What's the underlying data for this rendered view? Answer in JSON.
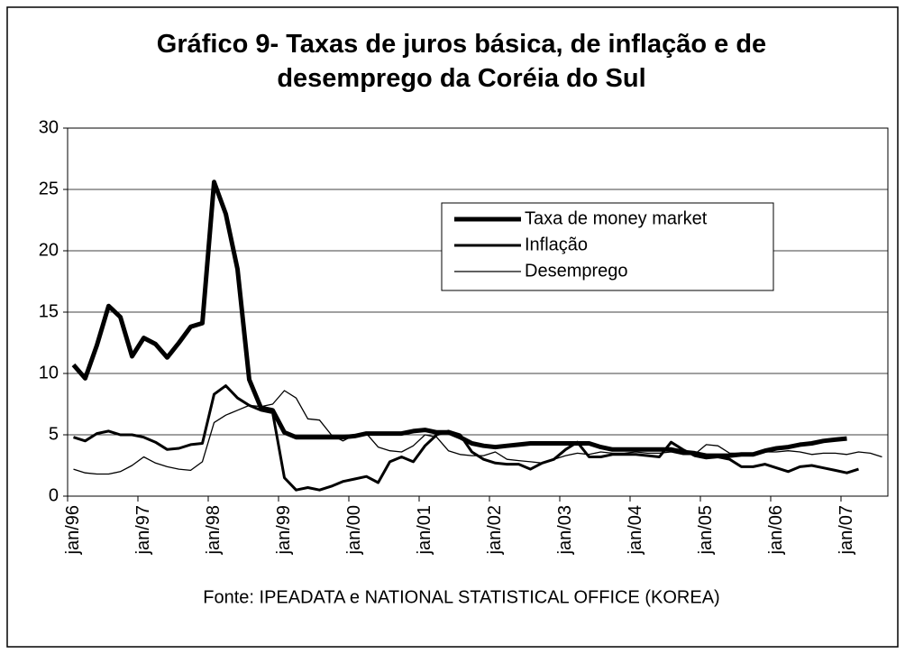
{
  "chart_data": {
    "type": "line",
    "title": "Gráfico 9- Taxas de juros básica, de inflação e de desemprego da Coréia do Sul",
    "source": "Fonte: IPEADATA e NATIONAL STATISTICAL OFFICE (KOREA)",
    "categories": [
      "jan/96",
      null,
      null,
      null,
      null,
      null,
      "jan/97",
      null,
      null,
      null,
      null,
      null,
      "jan/98",
      null,
      null,
      null,
      null,
      null,
      "jan/99",
      null,
      null,
      null,
      null,
      null,
      "jan/00",
      null,
      null,
      null,
      null,
      null,
      "jan/01",
      null,
      null,
      null,
      null,
      null,
      "jan/02",
      null,
      null,
      null,
      null,
      null,
      "jan/03",
      null,
      null,
      null,
      null,
      null,
      "jan/04",
      null,
      null,
      null,
      null,
      null,
      "jan/05",
      null,
      null,
      null,
      null,
      null,
      "jan/06",
      null,
      null,
      null,
      null,
      null,
      "jan/07",
      null,
      null,
      null
    ],
    "series": [
      {
        "name": "Taxa de money market",
        "color": "#000000",
        "width": 5,
        "values": [
          10.7,
          9.6,
          12.3,
          15.5,
          14.6,
          11.4,
          12.9,
          12.4,
          11.3,
          12.5,
          13.8,
          14.1,
          25.6,
          23,
          18.5,
          9.5,
          7.2,
          7.0,
          5.2,
          4.8,
          4.8,
          4.8,
          4.8,
          4.8,
          4.9,
          5.1,
          5.1,
          5.1,
          5.1,
          5.3,
          5.4,
          5.2,
          5.2,
          4.8,
          4.3,
          4.1,
          4.0,
          4.1,
          4.2,
          4.3,
          4.3,
          4.3,
          4.3,
          4.3,
          4.3,
          4.0,
          3.8,
          3.8,
          3.8,
          3.8,
          3.8,
          3.8,
          3.6,
          3.5,
          3.3,
          3.3,
          3.3,
          3.4,
          3.4,
          3.7,
          3.9,
          4.0,
          4.2,
          4.3,
          4.5,
          4.6,
          4.7,
          null,
          null,
          null
        ]
      },
      {
        "name": "Inflação",
        "color": "#000000",
        "width": 3,
        "values": [
          4.8,
          4.5,
          5.1,
          5.3,
          5.0,
          5.0,
          4.8,
          4.4,
          3.8,
          3.9,
          4.2,
          4.3,
          8.3,
          9.0,
          8.0,
          7.4,
          7.0,
          6.8,
          1.5,
          0.5,
          0.7,
          0.5,
          0.8,
          1.2,
          1.4,
          1.6,
          1.1,
          2.8,
          3.2,
          2.8,
          4.1,
          5.0,
          5.3,
          5.0,
          3.6,
          3.0,
          2.7,
          2.6,
          2.6,
          2.2,
          2.7,
          3.0,
          3.8,
          4.4,
          3.2,
          3.2,
          3.4,
          3.4,
          3.4,
          3.3,
          3.2,
          4.4,
          3.8,
          3.3,
          3.1,
          3.2,
          3.0,
          2.4,
          2.4,
          2.6,
          2.3,
          2.0,
          2.4,
          2.5,
          2.3,
          2.1,
          1.9,
          2.2,
          null,
          null
        ]
      },
      {
        "name": "Desemprego",
        "color": "#000000",
        "width": 1.3,
        "values": [
          2.2,
          1.9,
          1.8,
          1.8,
          2.0,
          2.5,
          3.2,
          2.7,
          2.4,
          2.2,
          2.1,
          2.8,
          6.0,
          6.6,
          7.0,
          7.4,
          7.3,
          7.5,
          8.6,
          8.0,
          6.3,
          6.2,
          5.0,
          4.5,
          5.0,
          5.1,
          4.0,
          3.7,
          3.6,
          4.1,
          5.0,
          4.8,
          3.7,
          3.4,
          3.3,
          3.3,
          3.6,
          3.0,
          2.9,
          2.8,
          2.7,
          3.0,
          3.3,
          3.5,
          3.4,
          3.6,
          3.5,
          3.5,
          3.6,
          3.5,
          3.5,
          3.6,
          3.4,
          3.4,
          4.2,
          4.1,
          3.5,
          3.5,
          3.5,
          3.6,
          3.6,
          3.7,
          3.6,
          3.4,
          3.5,
          3.5,
          3.4,
          3.6,
          3.5,
          3.2
        ]
      }
    ],
    "ylim": [
      0,
      30
    ],
    "yticks": [
      0,
      5,
      10,
      15,
      20,
      25,
      30
    ],
    "grid": true,
    "legend": "upper right"
  }
}
